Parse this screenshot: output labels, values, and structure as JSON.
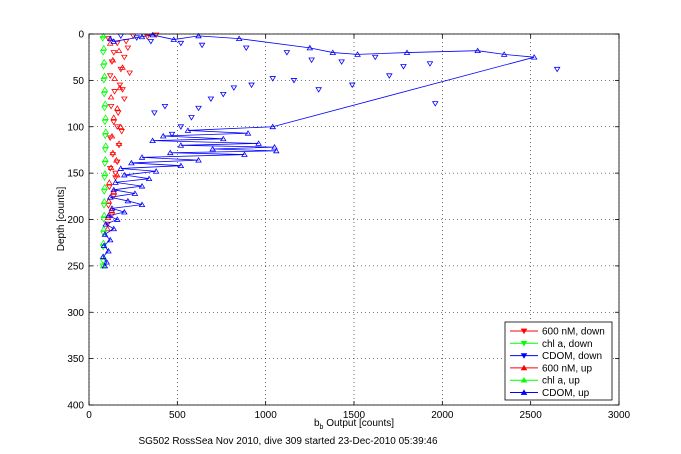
{
  "chart_data": {
    "type": "scatter",
    "xlabel_main": "b",
    "xlabel_sub": "b",
    "xlabel_rest": " Output [counts]",
    "ylabel": "Depth [counts]",
    "footer": "SG502 RossSea Nov 2010, dive 309 started 23-Dec-2010 05:39:46",
    "xlim": [
      0,
      3000
    ],
    "ylim": [
      0,
      400
    ],
    "y_reversed": true,
    "grid": true,
    "grid_style": "dotted",
    "legend_position": "bottom-right",
    "x_ticks": [
      "0",
      "500",
      "1000",
      "1500",
      "2000",
      "2500",
      "3000"
    ],
    "y_ticks": [
      "0",
      "50",
      "100",
      "150",
      "200",
      "250",
      "300",
      "350",
      "400"
    ],
    "series": [
      {
        "name": "600 nM, down",
        "color": "#ff0000",
        "marker": "triangle-down",
        "connected": false,
        "points": [
          [
            110,
            5
          ],
          [
            160,
            10
          ],
          [
            140,
            20
          ],
          [
            200,
            25
          ],
          [
            130,
            30
          ],
          [
            180,
            38
          ],
          [
            120,
            45
          ],
          [
            175,
            55
          ],
          [
            145,
            62
          ],
          [
            200,
            70
          ],
          [
            125,
            78
          ],
          [
            165,
            85
          ],
          [
            140,
            95
          ],
          [
            185,
            105
          ],
          [
            120,
            112
          ],
          [
            170,
            120
          ],
          [
            135,
            130
          ],
          [
            160,
            138
          ],
          [
            120,
            145
          ],
          [
            150,
            155
          ],
          [
            115,
            165
          ],
          [
            140,
            175
          ],
          [
            110,
            185
          ],
          [
            130,
            195
          ],
          [
            105,
            205
          ],
          [
            210,
            8
          ],
          [
            250,
            2
          ],
          [
            330,
            3
          ],
          [
            380,
            1
          ],
          [
            220,
            15
          ],
          [
            230,
            42
          ],
          [
            190,
            60
          ],
          [
            160,
            100
          ],
          [
            150,
            150
          ]
        ]
      },
      {
        "name": "chl a, down",
        "color": "#00ff00",
        "marker": "triangle-down",
        "connected": false,
        "points": [
          [
            78,
            5
          ],
          [
            80,
            20
          ],
          [
            82,
            35
          ],
          [
            84,
            50
          ],
          [
            86,
            65
          ],
          [
            88,
            80
          ],
          [
            90,
            95
          ],
          [
            92,
            110
          ],
          [
            92,
            125
          ],
          [
            90,
            140
          ],
          [
            88,
            155
          ],
          [
            86,
            170
          ],
          [
            85,
            185
          ],
          [
            84,
            200
          ],
          [
            82,
            215
          ],
          [
            80,
            230
          ],
          [
            80,
            245
          ],
          [
            78,
            250
          ]
        ]
      },
      {
        "name": "CDOM, down",
        "color": "#0000ff",
        "marker": "triangle-down",
        "connected": false,
        "points": [
          [
            180,
            2
          ],
          [
            270,
            4
          ],
          [
            350,
            8
          ],
          [
            520,
            10
          ],
          [
            640,
            12
          ],
          [
            890,
            15
          ],
          [
            1120,
            20
          ],
          [
            1260,
            28
          ],
          [
            1430,
            30
          ],
          [
            1620,
            25
          ],
          [
            1780,
            35
          ],
          [
            1930,
            32
          ],
          [
            1700,
            45
          ],
          [
            1490,
            55
          ],
          [
            1300,
            60
          ],
          [
            1160,
            50
          ],
          [
            1040,
            48
          ],
          [
            920,
            55
          ],
          [
            820,
            58
          ],
          [
            760,
            65
          ],
          [
            690,
            70
          ],
          [
            620,
            80
          ],
          [
            580,
            90
          ],
          [
            520,
            100
          ],
          [
            470,
            108
          ],
          [
            430,
            78
          ],
          [
            370,
            85
          ],
          [
            2650,
            38
          ],
          [
            1960,
            75
          ]
        ]
      },
      {
        "name": "600 nM, up",
        "color": "#ff0000",
        "marker": "triangle-up",
        "connected": false,
        "points": [
          [
            120,
            10
          ],
          [
            170,
            18
          ],
          [
            135,
            28
          ],
          [
            190,
            36
          ],
          [
            145,
            48
          ],
          [
            175,
            58
          ],
          [
            125,
            68
          ],
          [
            160,
            80
          ],
          [
            140,
            90
          ],
          [
            180,
            100
          ],
          [
            130,
            110
          ],
          [
            170,
            118
          ],
          [
            135,
            128
          ],
          [
            155,
            136
          ],
          [
            125,
            144
          ],
          [
            160,
            152
          ],
          [
            115,
            160
          ],
          [
            140,
            170
          ],
          [
            112,
            180
          ],
          [
            128,
            190
          ],
          [
            108,
            198
          ],
          [
            105,
            210
          ]
        ]
      },
      {
        "name": "chl a, up",
        "color": "#00ff00",
        "marker": "triangle-up",
        "connected": false,
        "points": [
          [
            82,
            2
          ],
          [
            84,
            15
          ],
          [
            86,
            30
          ],
          [
            88,
            45
          ],
          [
            90,
            60
          ],
          [
            92,
            75
          ],
          [
            94,
            90
          ],
          [
            95,
            105
          ],
          [
            95,
            120
          ],
          [
            93,
            135
          ],
          [
            91,
            150
          ],
          [
            89,
            165
          ],
          [
            87,
            180
          ],
          [
            86,
            195
          ],
          [
            84,
            210
          ],
          [
            82,
            225
          ],
          [
            80,
            240
          ],
          [
            80,
            250
          ]
        ]
      },
      {
        "name": "CDOM, up",
        "color": "#0000ff",
        "marker": "triangle-up",
        "connected": true,
        "points": [
          [
            120,
            5
          ],
          [
            140,
            8
          ],
          [
            300,
            3
          ],
          [
            360,
            1
          ],
          [
            480,
            6
          ],
          [
            620,
            2
          ],
          [
            850,
            5
          ],
          [
            1250,
            15
          ],
          [
            1380,
            20
          ],
          [
            1520,
            22
          ],
          [
            1800,
            20
          ],
          [
            2200,
            18
          ],
          [
            2350,
            22
          ],
          [
            2520,
            25
          ],
          [
            1040,
            100
          ],
          [
            560,
            104
          ],
          [
            900,
            107
          ],
          [
            420,
            110
          ],
          [
            760,
            113
          ],
          [
            360,
            115
          ],
          [
            960,
            118
          ],
          [
            520,
            120
          ],
          [
            1050,
            122
          ],
          [
            700,
            124
          ],
          [
            1060,
            126
          ],
          [
            460,
            128
          ],
          [
            880,
            130
          ],
          [
            300,
            133
          ],
          [
            620,
            136
          ],
          [
            240,
            139
          ],
          [
            520,
            142
          ],
          [
            180,
            145
          ],
          [
            380,
            148
          ],
          [
            200,
            152
          ],
          [
            340,
            156
          ],
          [
            150,
            160
          ],
          [
            300,
            164
          ],
          [
            140,
            168
          ],
          [
            260,
            172
          ],
          [
            120,
            176
          ],
          [
            220,
            180
          ],
          [
            300,
            184
          ],
          [
            130,
            188
          ],
          [
            200,
            192
          ],
          [
            110,
            196
          ],
          [
            160,
            200
          ],
          [
            95,
            205
          ],
          [
            140,
            210
          ],
          [
            90,
            216
          ],
          [
            120,
            222
          ],
          [
            85,
            228
          ],
          [
            110,
            234
          ],
          [
            80,
            240
          ],
          [
            100,
            246
          ],
          [
            90,
            250
          ]
        ]
      }
    ]
  }
}
